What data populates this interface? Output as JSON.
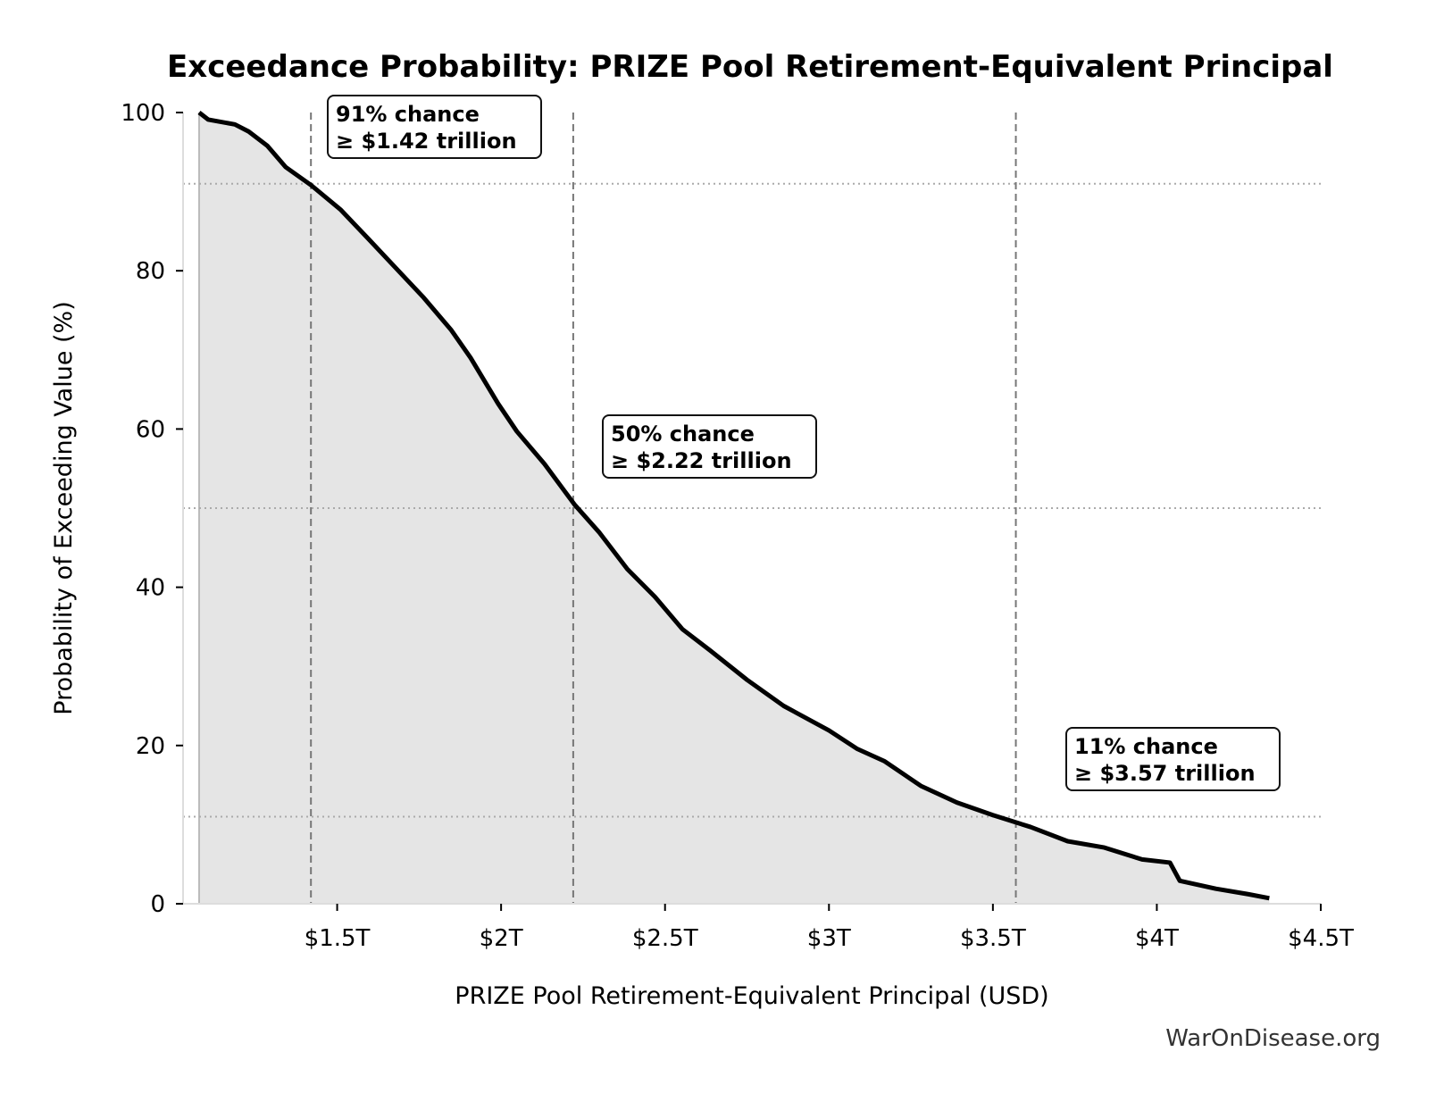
{
  "chart_data": {
    "type": "area",
    "title": "Exceedance Probability: PRIZE Pool Retirement-Equivalent Principal",
    "xlabel": "PRIZE Pool Retirement-Equivalent Principal (USD)",
    "ylabel": "Probability of Exceeding Value (%)",
    "xlim": [
      1.03,
      4.5
    ],
    "ylim": [
      0,
      100
    ],
    "x_unit": "trillion USD",
    "x_ticks": [
      {
        "v": 1.5,
        "label": "$1.5T"
      },
      {
        "v": 2,
        "label": "$2T"
      },
      {
        "v": 2.5,
        "label": "$2.5T"
      },
      {
        "v": 3,
        "label": "$3T"
      },
      {
        "v": 3.5,
        "label": "$3.5T"
      },
      {
        "v": 4,
        "label": "$4T"
      },
      {
        "v": 4.5,
        "label": "$4.5T"
      }
    ],
    "y_ticks": [
      {
        "v": 0,
        "label": "0"
      },
      {
        "v": 20,
        "label": "20"
      },
      {
        "v": 40,
        "label": "40"
      },
      {
        "v": 60,
        "label": "60"
      },
      {
        "v": 80,
        "label": "80"
      },
      {
        "v": 100,
        "label": "100"
      }
    ],
    "grid": false,
    "line_color": "#000000",
    "fill_color": "#e5e5e5",
    "x": [
      1.079,
      1.107,
      1.188,
      1.23,
      1.287,
      1.343,
      1.421,
      1.511,
      1.596,
      1.68,
      1.764,
      1.848,
      1.907,
      1.991,
      2.048,
      2.132,
      2.225,
      2.3,
      2.385,
      2.469,
      2.553,
      2.638,
      2.75,
      2.862,
      3.0,
      3.085,
      3.17,
      3.28,
      3.39,
      3.5,
      3.615,
      3.728,
      3.84,
      3.955,
      4.04,
      4.07,
      4.18,
      4.28,
      4.343
    ],
    "y": [
      100,
      99.1,
      98.5,
      97.6,
      95.8,
      93.1,
      90.8,
      87.7,
      84,
      80.3,
      76.6,
      72.5,
      69,
      63.2,
      59.7,
      55.6,
      50.4,
      46.9,
      42.3,
      38.8,
      34.7,
      32,
      28.3,
      25,
      21.9,
      19.6,
      18,
      14.9,
      12.8,
      11.2,
      9.7,
      7.9,
      7.1,
      5.6,
      5.2,
      2.9,
      1.9,
      1.2,
      0.7
    ],
    "annotations": [
      {
        "x": 1.42,
        "p": 91,
        "line1": "91% chance",
        "line2": "≥ $1.42 trillion"
      },
      {
        "x": 2.22,
        "p": 50,
        "line1": "50% chance",
        "line2": "≥ $2.22 trillion"
      },
      {
        "x": 3.57,
        "p": 11,
        "line1": "11% chance",
        "line2": "≥ $3.57 trillion"
      }
    ]
  },
  "watermark": "WarOnDisease.org"
}
